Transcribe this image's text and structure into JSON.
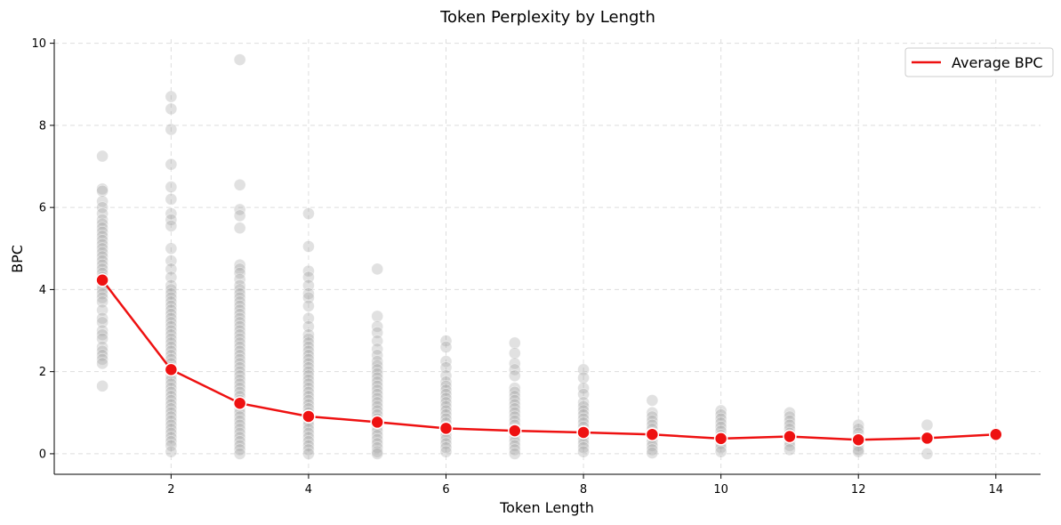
{
  "chart_data": {
    "type": "scatter",
    "title": "Token Perplexity by Length",
    "xlabel": "Token Length",
    "ylabel": "BPC",
    "xlim": [
      0.3,
      14.65
    ],
    "ylim": [
      -0.5,
      10.1
    ],
    "xticks": [
      2,
      4,
      6,
      8,
      10,
      12,
      14
    ],
    "yticks": [
      0,
      2,
      4,
      6,
      8,
      10
    ],
    "grid": true,
    "legend": {
      "position": "top-right",
      "entries": [
        "Average BPC"
      ]
    },
    "colors": {
      "points": "#9a9a9a",
      "average_line": "#ee1111",
      "grid": "#dddddd"
    },
    "series": [
      {
        "name": "Average BPC",
        "x": [
          1,
          2,
          3,
          4,
          5,
          6,
          7,
          8,
          9,
          10,
          11,
          12,
          13,
          14
        ],
        "y": [
          4.23,
          2.05,
          1.23,
          0.91,
          0.77,
          0.62,
          0.56,
          0.52,
          0.47,
          0.37,
          0.42,
          0.34,
          0.38,
          0.47
        ]
      }
    ],
    "scatter_points": [
      {
        "x": 1,
        "y": [
          7.25,
          6.45,
          6.4,
          6.15,
          6.0,
          5.85,
          5.7,
          5.6,
          5.5,
          5.4,
          5.3,
          5.2,
          5.1,
          5.0,
          4.9,
          4.8,
          4.7,
          4.6,
          4.5,
          4.4,
          4.3,
          4.2,
          4.1,
          4.0,
          3.9,
          3.8,
          3.7,
          3.5,
          3.3,
          3.2,
          3.0,
          2.9,
          2.8,
          2.6,
          2.5,
          2.4,
          2.3,
          2.2,
          1.65
        ]
      },
      {
        "x": 2,
        "y": [
          8.7,
          8.4,
          7.9,
          7.05,
          6.5,
          6.2,
          5.85,
          5.7,
          5.55,
          5.0,
          4.7,
          4.5,
          4.3,
          4.1,
          4.0,
          3.9,
          3.8,
          3.7,
          3.6,
          3.5,
          3.4,
          3.3,
          3.2,
          3.1,
          3.0,
          2.9,
          2.8,
          2.7,
          2.6,
          2.5,
          2.4,
          2.3,
          2.2,
          2.1,
          2.0,
          1.9,
          1.8,
          1.7,
          1.6,
          1.5,
          1.4,
          1.3,
          1.2,
          1.1,
          1.0,
          0.9,
          0.8,
          0.7,
          0.6,
          0.5,
          0.4,
          0.3,
          0.2,
          0.05
        ]
      },
      {
        "x": 3,
        "y": [
          9.6,
          6.55,
          5.95,
          5.8,
          5.5,
          4.6,
          4.5,
          4.4,
          4.25,
          4.1,
          4.0,
          3.9,
          3.8,
          3.7,
          3.6,
          3.5,
          3.4,
          3.3,
          3.2,
          3.1,
          3.0,
          2.9,
          2.8,
          2.7,
          2.6,
          2.5,
          2.4,
          2.3,
          2.2,
          2.1,
          2.0,
          1.9,
          1.8,
          1.7,
          1.6,
          1.5,
          1.4,
          1.3,
          1.2,
          1.1,
          1.0,
          0.9,
          0.8,
          0.7,
          0.6,
          0.5,
          0.4,
          0.3,
          0.2,
          0.1,
          0.0
        ]
      },
      {
        "x": 4,
        "y": [
          5.85,
          5.05,
          4.45,
          4.3,
          4.1,
          3.9,
          3.8,
          3.6,
          3.3,
          3.1,
          2.9,
          2.8,
          2.7,
          2.6,
          2.5,
          2.4,
          2.3,
          2.2,
          2.1,
          2.0,
          1.9,
          1.8,
          1.7,
          1.6,
          1.5,
          1.4,
          1.3,
          1.2,
          1.1,
          1.0,
          0.9,
          0.8,
          0.7,
          0.6,
          0.5,
          0.4,
          0.3,
          0.2,
          0.1,
          0.0
        ]
      },
      {
        "x": 5,
        "y": [
          4.5,
          3.35,
          3.1,
          2.95,
          2.75,
          2.55,
          2.4,
          2.25,
          2.15,
          2.05,
          1.95,
          1.85,
          1.75,
          1.65,
          1.55,
          1.45,
          1.35,
          1.25,
          1.15,
          1.05,
          0.95,
          0.85,
          0.75,
          0.65,
          0.55,
          0.45,
          0.35,
          0.25,
          0.15,
          0.05,
          0.0
        ]
      },
      {
        "x": 6,
        "y": [
          2.75,
          2.6,
          2.25,
          2.1,
          1.9,
          1.75,
          1.65,
          1.55,
          1.45,
          1.35,
          1.25,
          1.15,
          1.05,
          0.95,
          0.85,
          0.75,
          0.65,
          0.55,
          0.45,
          0.35,
          0.25,
          0.15,
          0.05
        ]
      },
      {
        "x": 7,
        "y": [
          2.7,
          2.45,
          2.2,
          2.05,
          1.9,
          1.6,
          1.5,
          1.4,
          1.3,
          1.2,
          1.1,
          1.0,
          0.9,
          0.8,
          0.7,
          0.6,
          0.5,
          0.4,
          0.3,
          0.2,
          0.1,
          0.0
        ]
      },
      {
        "x": 8,
        "y": [
          2.05,
          1.85,
          1.6,
          1.45,
          1.25,
          1.15,
          1.05,
          0.95,
          0.85,
          0.75,
          0.65,
          0.55,
          0.45,
          0.35,
          0.25,
          0.15,
          0.05
        ]
      },
      {
        "x": 9,
        "y": [
          1.3,
          1.0,
          0.9,
          0.8,
          0.7,
          0.6,
          0.5,
          0.4,
          0.3,
          0.2,
          0.1,
          0.02
        ]
      },
      {
        "x": 10,
        "y": [
          1.05,
          0.95,
          0.85,
          0.75,
          0.65,
          0.55,
          0.45,
          0.35,
          0.25,
          0.15,
          0.05
        ]
      },
      {
        "x": 11,
        "y": [
          1.0,
          0.9,
          0.8,
          0.7,
          0.6,
          0.5,
          0.4,
          0.3,
          0.2,
          0.1
        ]
      },
      {
        "x": 12,
        "y": [
          0.7,
          0.6,
          0.5,
          0.4,
          0.3,
          0.2,
          0.1,
          0.05
        ]
      },
      {
        "x": 13,
        "y": [
          0.7,
          0.4,
          0.0
        ]
      },
      {
        "x": 14,
        "y": [
          0.47
        ]
      }
    ]
  }
}
